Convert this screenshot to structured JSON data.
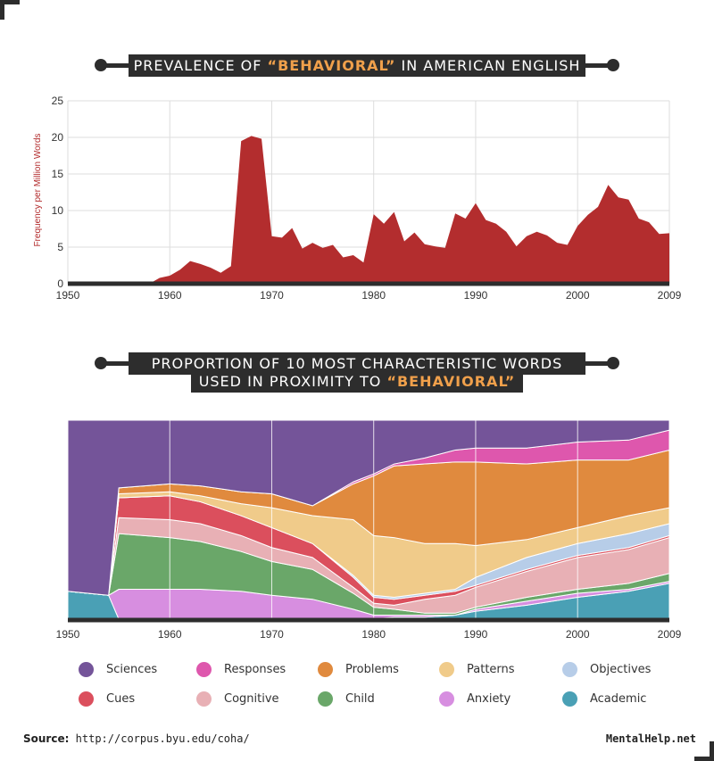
{
  "charts": {
    "top": {
      "title_pre": "PREVALENCE OF ",
      "title_hl": "“BEHAVIORAL”",
      "title_post": " IN AMERICAN ENGLISH",
      "ylabel": "Frequency per Million Words"
    },
    "bottom": {
      "title_line1": "PROPORTION OF 10 MOST CHARACTERISTIC WORDS",
      "title_line2_pre": "USED IN PROXIMITY TO ",
      "title_line2_hl": "“BEHAVIORAL”"
    }
  },
  "chart_data": [
    {
      "type": "area",
      "xlim": [
        1950,
        2009
      ],
      "ylim": [
        0,
        25
      ],
      "x_ticks": [
        "1950",
        "1960",
        "1970",
        "1980",
        "1990",
        "2000",
        "2009"
      ],
      "y_ticks": [
        "0",
        "5",
        "10",
        "15",
        "20",
        "25"
      ],
      "ylabel": "Frequency per Million Words",
      "color": "#b32d2e",
      "x": [
        1950,
        1958,
        1959,
        1960,
        1961,
        1962,
        1963,
        1964,
        1965,
        1966,
        1967,
        1968,
        1969,
        1970,
        1971,
        1972,
        1973,
        1974,
        1975,
        1976,
        1977,
        1978,
        1979,
        1980,
        1981,
        1982,
        1983,
        1984,
        1985,
        1986,
        1987,
        1988,
        1989,
        1990,
        1991,
        1992,
        1993,
        1994,
        1995,
        1996,
        1997,
        1998,
        1999,
        2000,
        2001,
        2002,
        2003,
        2004,
        2005,
        2006,
        2007,
        2008,
        2009
      ],
      "values": [
        0,
        0,
        0.8,
        1.1,
        1.9,
        3.1,
        2.7,
        2.2,
        1.5,
        2.4,
        19.5,
        20.2,
        19.8,
        6.5,
        6.3,
        7.6,
        4.8,
        5.6,
        4.9,
        5.3,
        3.6,
        3.9,
        2.9,
        9.5,
        8.2,
        9.8,
        5.8,
        7.0,
        5.4,
        5.1,
        4.9,
        9.6,
        8.9,
        11.0,
        8.7,
        8.2,
        7.1,
        5.1,
        6.5,
        7.1,
        6.6,
        5.6,
        5.3,
        7.9,
        9.4,
        10.5,
        13.5,
        11.8,
        11.5,
        8.9,
        8.4,
        6.8,
        6.9
      ]
    },
    {
      "type": "area",
      "stacked": "100%",
      "xlim": [
        1950,
        2009
      ],
      "ylim": [
        0,
        100
      ],
      "x_ticks": [
        "1950",
        "1960",
        "1970",
        "1980",
        "1990",
        "2000",
        "2009"
      ],
      "x": [
        1950,
        1954,
        1955,
        1960,
        1963,
        1967,
        1970,
        1974,
        1978,
        1980,
        1982,
        1985,
        1988,
        1990,
        1995,
        2000,
        2005,
        2009
      ],
      "series": [
        {
          "name": "Academic",
          "color": "#4aa0b5",
          "values": [
            14,
            12,
            0,
            0,
            0,
            0,
            0,
            0,
            0,
            0,
            1,
            1,
            2,
            4,
            7,
            11,
            14,
            18
          ]
        },
        {
          "name": "Anxiety",
          "color": "#d78ee0",
          "values": [
            0,
            0,
            15,
            15,
            15,
            14,
            12,
            10,
            5,
            2,
            1,
            1,
            0,
            1,
            2,
            2,
            1,
            1
          ]
        },
        {
          "name": "Child",
          "color": "#6aa769",
          "values": [
            0,
            0,
            28,
            26,
            24,
            20,
            17,
            15,
            8,
            4,
            3,
            1,
            1,
            1,
            2,
            2,
            3,
            4
          ]
        },
        {
          "name": "Cognitive",
          "color": "#e8b0b5",
          "values": [
            0,
            0,
            8,
            9,
            9,
            8,
            7,
            6,
            3,
            2,
            2,
            7,
            9,
            10,
            13,
            16,
            17,
            18
          ]
        },
        {
          "name": "Cues",
          "color": "#db4f5d",
          "values": [
            0,
            0,
            10,
            12,
            11,
            10,
            10,
            7,
            5,
            3,
            3,
            2,
            2,
            1,
            1,
            1,
            1,
            1
          ]
        },
        {
          "name": "Objectives",
          "color": "#b7cde8",
          "values": [
            0,
            0,
            0,
            0,
            0,
            0,
            0,
            0,
            1,
            1,
            1,
            1,
            1,
            4,
            6,
            6,
            7,
            6
          ]
        },
        {
          "name": "Patterns",
          "color": "#f0cb8a",
          "values": [
            0,
            0,
            2,
            2,
            3,
            6,
            10,
            14,
            28,
            30,
            30,
            25,
            23,
            16,
            9,
            8,
            9,
            8
          ]
        },
        {
          "name": "Problems",
          "color": "#e08a3e",
          "values": [
            0,
            0,
            3,
            4,
            5,
            6,
            7,
            5,
            18,
            30,
            36,
            40,
            41,
            42,
            38,
            34,
            28,
            29
          ]
        },
        {
          "name": "Responses",
          "color": "#de57ad",
          "values": [
            0,
            0,
            0,
            0,
            0,
            0,
            0,
            0,
            1,
            1,
            1,
            3,
            6,
            7,
            8,
            9,
            10,
            10
          ]
        },
        {
          "name": "Sciences",
          "color": "#745499",
          "values": [
            86,
            88,
            34,
            32,
            33,
            36,
            37,
            43,
            31,
            27,
            22,
            19,
            15,
            14,
            14,
            11,
            10,
            5
          ]
        }
      ]
    }
  ],
  "legend": [
    {
      "label": "Sciences",
      "color": "#745499"
    },
    {
      "label": "Responses",
      "color": "#de57ad"
    },
    {
      "label": "Problems",
      "color": "#e08a3e"
    },
    {
      "label": "Patterns",
      "color": "#f0cb8a"
    },
    {
      "label": "Objectives",
      "color": "#b7cde8"
    },
    {
      "label": "Cues",
      "color": "#db4f5d"
    },
    {
      "label": "Cognitive",
      "color": "#e8b0b5"
    },
    {
      "label": "Child",
      "color": "#6aa769"
    },
    {
      "label": "Anxiety",
      "color": "#d78ee0"
    },
    {
      "label": "Academic",
      "color": "#4aa0b5"
    }
  ],
  "footer": {
    "source_label": "Source:",
    "source_url": "http://corpus.byu.edu/coha/",
    "brand": "MentalHelp.net"
  }
}
